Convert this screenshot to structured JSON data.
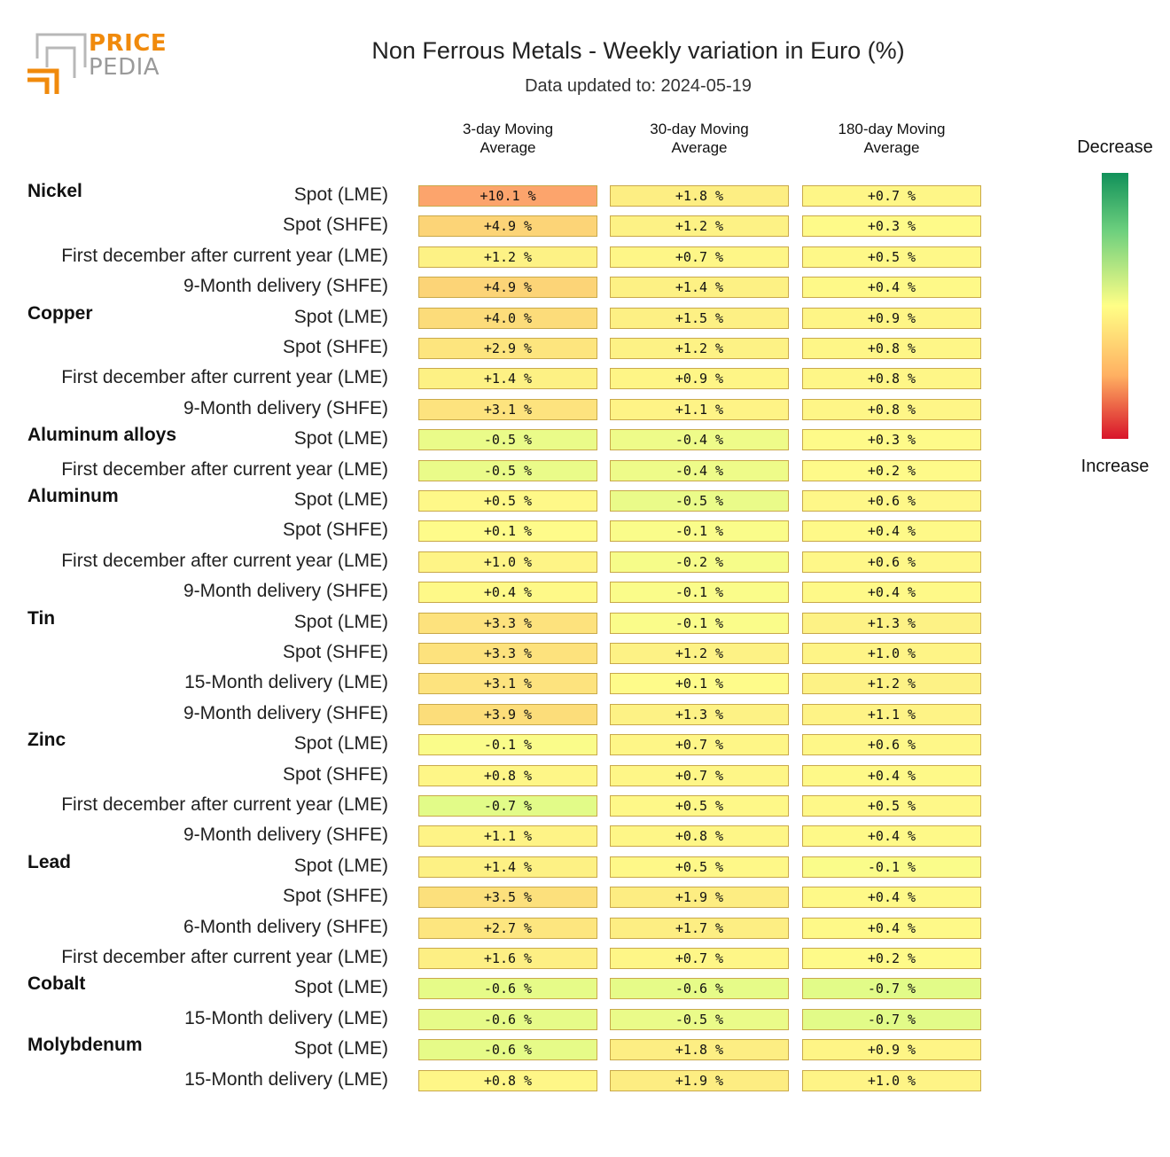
{
  "logo": {
    "line1": "PRICE",
    "line2": "PEDIA"
  },
  "chart_data": {
    "type": "heatmap",
    "title": "Non Ferrous Metals - Weekly variation in Euro (%)",
    "subtitle": "Data updated to: 2024-05-19",
    "columns": [
      "3-day Moving\nAverage",
      "30-day Moving\nAverage",
      "180-day Moving\nAverage"
    ],
    "unit": "%",
    "groups": [
      {
        "name": "Nickel",
        "rows": [
          {
            "label": "Spot (LME)",
            "values": [
              10.1,
              1.8,
              0.7
            ]
          },
          {
            "label": "Spot (SHFE)",
            "values": [
              4.9,
              1.2,
              0.3
            ]
          },
          {
            "label": "First december after current year (LME)",
            "values": [
              1.2,
              0.7,
              0.5
            ]
          },
          {
            "label": "9-Month delivery (SHFE)",
            "values": [
              4.9,
              1.4,
              0.4
            ]
          }
        ]
      },
      {
        "name": "Copper",
        "rows": [
          {
            "label": "Spot (LME)",
            "values": [
              4.0,
              1.5,
              0.9
            ]
          },
          {
            "label": "Spot (SHFE)",
            "values": [
              2.9,
              1.2,
              0.8
            ]
          },
          {
            "label": "First december after current year (LME)",
            "values": [
              1.4,
              0.9,
              0.8
            ]
          },
          {
            "label": "9-Month delivery (SHFE)",
            "values": [
              3.1,
              1.1,
              0.8
            ]
          }
        ]
      },
      {
        "name": "Aluminum alloys",
        "rows": [
          {
            "label": "Spot (LME)",
            "values": [
              -0.5,
              -0.4,
              0.3
            ]
          },
          {
            "label": "First december after current year (LME)",
            "values": [
              -0.5,
              -0.4,
              0.2
            ]
          }
        ]
      },
      {
        "name": "Aluminum",
        "rows": [
          {
            "label": "Spot (LME)",
            "values": [
              0.5,
              -0.5,
              0.6
            ]
          },
          {
            "label": "Spot (SHFE)",
            "values": [
              0.1,
              -0.1,
              0.4
            ]
          },
          {
            "label": "First december after current year (LME)",
            "values": [
              1.0,
              -0.2,
              0.6
            ]
          },
          {
            "label": "9-Month delivery (SHFE)",
            "values": [
              0.4,
              -0.1,
              0.4
            ]
          }
        ]
      },
      {
        "name": "Tin",
        "rows": [
          {
            "label": "Spot (LME)",
            "values": [
              3.3,
              -0.1,
              1.3
            ]
          },
          {
            "label": "Spot (SHFE)",
            "values": [
              3.3,
              1.2,
              1.0
            ]
          },
          {
            "label": "15-Month delivery (LME)",
            "values": [
              3.1,
              0.1,
              1.2
            ]
          },
          {
            "label": "9-Month delivery (SHFE)",
            "values": [
              3.9,
              1.3,
              1.1
            ]
          }
        ]
      },
      {
        "name": "Zinc",
        "rows": [
          {
            "label": "Spot (LME)",
            "values": [
              -0.1,
              0.7,
              0.6
            ]
          },
          {
            "label": "Spot (SHFE)",
            "values": [
              0.8,
              0.7,
              0.4
            ]
          },
          {
            "label": "First december after current year (LME)",
            "values": [
              -0.7,
              0.5,
              0.5
            ]
          },
          {
            "label": "9-Month delivery (SHFE)",
            "values": [
              1.1,
              0.8,
              0.4
            ]
          }
        ]
      },
      {
        "name": "Lead",
        "rows": [
          {
            "label": "Spot (LME)",
            "values": [
              1.4,
              0.5,
              -0.1
            ]
          },
          {
            "label": "Spot (SHFE)",
            "values": [
              3.5,
              1.9,
              0.4
            ]
          },
          {
            "label": "6-Month delivery (SHFE)",
            "values": [
              2.7,
              1.7,
              0.4
            ]
          },
          {
            "label": "First december after current year (LME)",
            "values": [
              1.6,
              0.7,
              0.2
            ]
          }
        ]
      },
      {
        "name": "Cobalt",
        "rows": [
          {
            "label": "Spot (LME)",
            "values": [
              -0.6,
              -0.6,
              -0.7
            ]
          },
          {
            "label": "15-Month delivery (LME)",
            "values": [
              -0.6,
              -0.5,
              -0.7
            ]
          }
        ]
      },
      {
        "name": "Molybdenum",
        "rows": [
          {
            "label": "Spot (LME)",
            "values": [
              -0.6,
              1.8,
              0.9
            ]
          },
          {
            "label": "15-Month delivery (LME)",
            "values": [
              0.8,
              1.9,
              1.0
            ]
          }
        ]
      }
    ],
    "legend": {
      "top": "Decrease",
      "bottom": "Increase",
      "colors": [
        "#11915a",
        "#6ed07e",
        "#fffe86",
        "#ffb162",
        "#d8142a"
      ]
    }
  }
}
